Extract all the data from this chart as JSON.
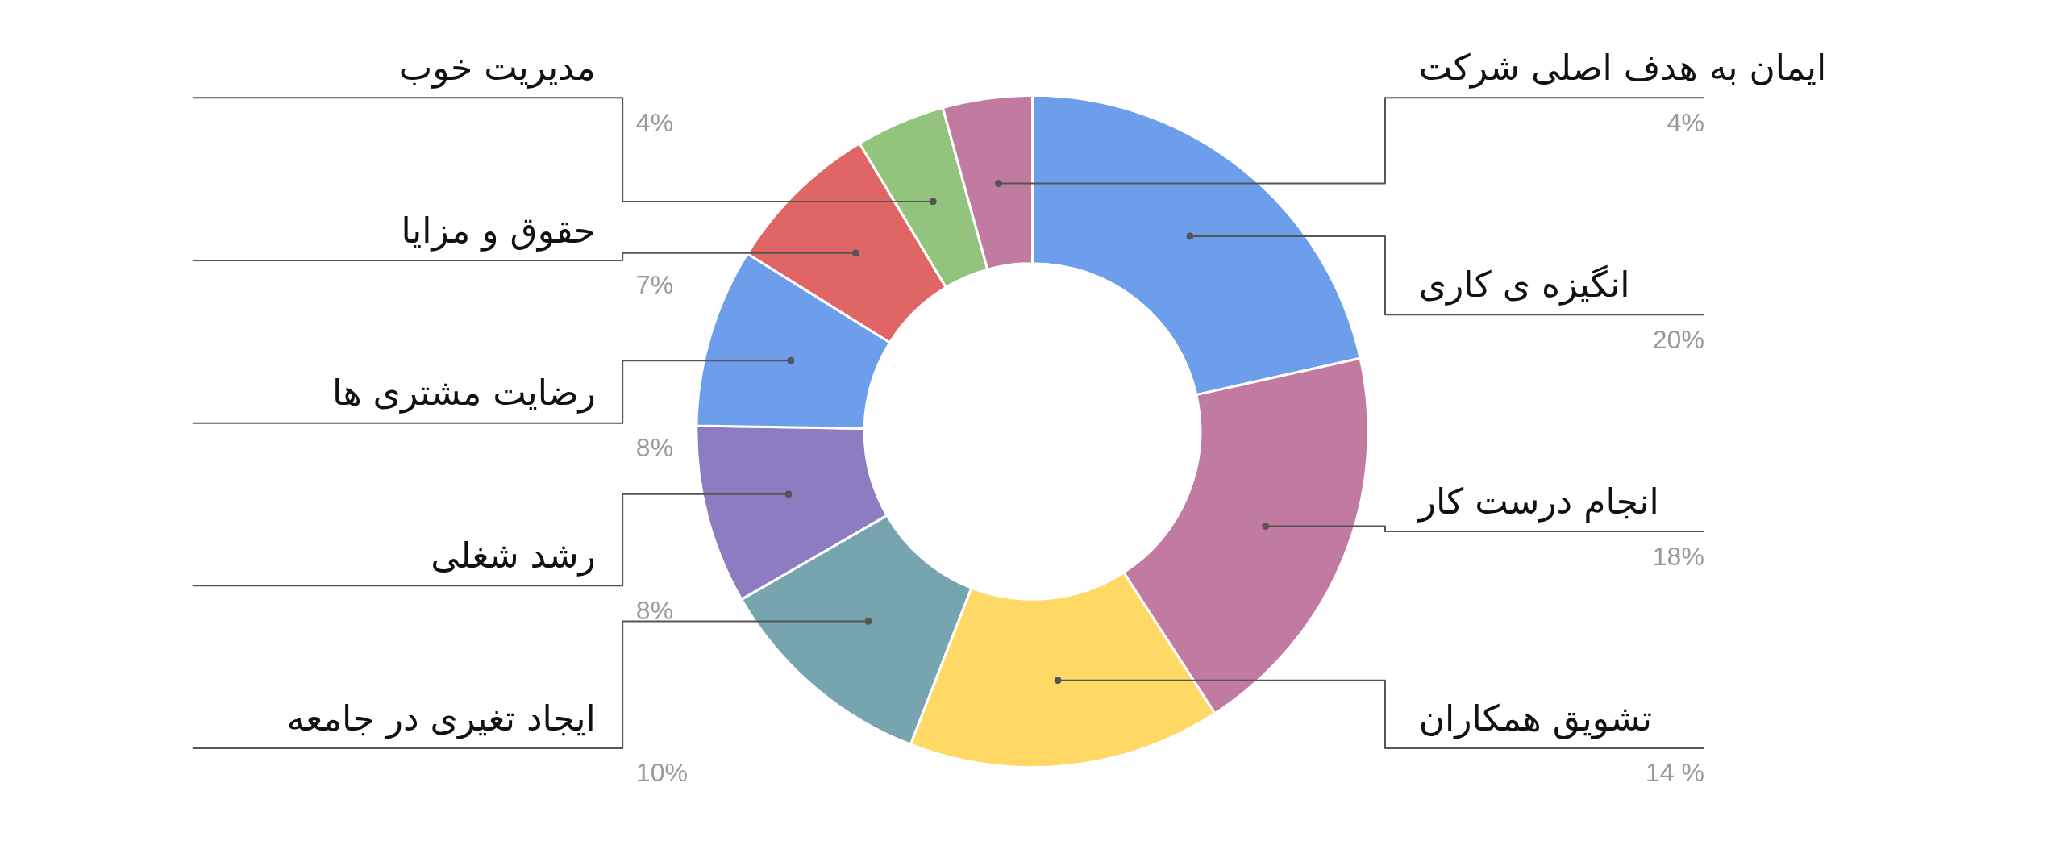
{
  "chart_data": {
    "type": "donut",
    "categories": [
      "انگیزه ی کاری",
      "انجام درست کار",
      "تشویق همکاران",
      "ایجاد تغیری در جامعه",
      "رشد شغلی",
      "رضایت مشتری ها",
      "حقوق و مزایا",
      "مدیریت خوب",
      "ایمان به هدف اصلی شرکت"
    ],
    "values": [
      20,
      18,
      14,
      10,
      8,
      8,
      7,
      4,
      4
    ],
    "value_labels": [
      "20%",
      "18%",
      "14 %",
      "10%",
      "8%",
      "8%",
      "7%",
      "4%",
      "4%"
    ],
    "colors": [
      "#6d9eeb",
      "#c27ba0",
      "#ffd966",
      "#76a5af",
      "#8e7cc3",
      "#6d9eeb",
      "#e06666",
      "#93c47d",
      "#c27ba0"
    ]
  }
}
